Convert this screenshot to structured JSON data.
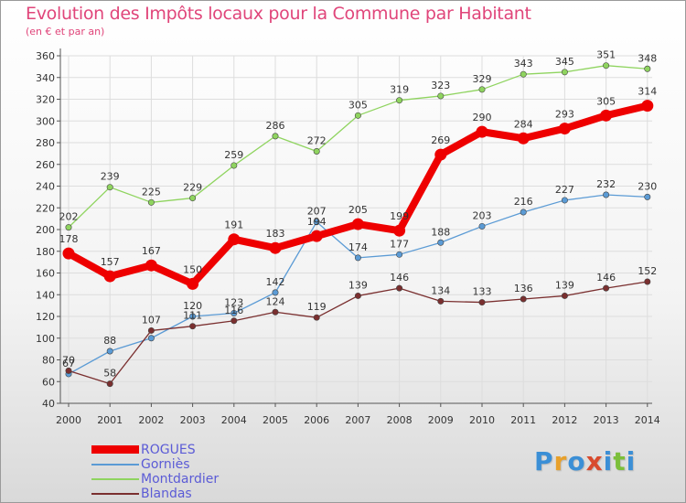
{
  "title": "Evolution des Impôts locaux pour la Commune par Habitant",
  "subtitle": "(en € et par an)",
  "logo": {
    "letters": [
      {
        "ch": "P",
        "color": "#3b8fd6"
      },
      {
        "ch": "r",
        "color": "#e8a02a"
      },
      {
        "ch": "o",
        "color": "#3b8fd6"
      },
      {
        "ch": "x",
        "color": "#d84a2e"
      },
      {
        "ch": "i",
        "color": "#3b8fd6"
      },
      {
        "ch": "t",
        "color": "#7cbf3a"
      },
      {
        "ch": "i",
        "color": "#3b8fd6"
      }
    ]
  },
  "chart_data": {
    "type": "line",
    "x": [
      "2000",
      "2001",
      "2002",
      "2003",
      "2004",
      "2005",
      "2006",
      "2007",
      "2008",
      "2009",
      "2010",
      "2011",
      "2012",
      "2013",
      "2014"
    ],
    "ylim": [
      40,
      360
    ],
    "yticks": [
      40,
      60,
      80,
      100,
      120,
      140,
      160,
      180,
      200,
      220,
      240,
      260,
      280,
      300,
      320,
      340,
      360
    ],
    "grid": true,
    "legend_position": "bottom-left",
    "series": [
      {
        "name": "ROGUES",
        "color": "#ee0000",
        "emphasis": true,
        "values": [
          178,
          157,
          167,
          150,
          191,
          183,
          194,
          205,
          199,
          269,
          290,
          284,
          293,
          305,
          314
        ],
        "labels": [
          "178",
          "157",
          "167",
          "150",
          "191",
          "183",
          "194",
          "205",
          "199",
          "269",
          "290",
          "284",
          "293",
          "305",
          "314"
        ]
      },
      {
        "name": "Gorniès",
        "color": "#5b9bd5",
        "values": [
          67,
          88,
          100,
          120,
          123,
          142,
          207,
          174,
          177,
          188,
          203,
          216,
          227,
          232,
          230
        ],
        "labels": [
          "67",
          "88",
          "",
          "120",
          "123",
          "142",
          "207",
          "174",
          "177",
          "188",
          "203",
          "216",
          "227",
          "232",
          "230"
        ]
      },
      {
        "name": "Montdardier",
        "color": "#8fd45f",
        "values": [
          202,
          239,
          225,
          229,
          259,
          286,
          272,
          305,
          319,
          323,
          329,
          343,
          345,
          351,
          348
        ],
        "labels": [
          "202",
          "239",
          "225",
          "229",
          "259",
          "286",
          "272",
          "305",
          "319",
          "323",
          "329",
          "343",
          "345",
          "351",
          "348"
        ]
      },
      {
        "name": "Blandas",
        "color": "#7a2f2f",
        "values": [
          70,
          58,
          107,
          111,
          116,
          124,
          119,
          139,
          146,
          134,
          133,
          136,
          139,
          146,
          152
        ],
        "labels": [
          "70",
          "58",
          "107",
          "111",
          "116",
          "124",
          "119",
          "139",
          "146",
          "134",
          "133",
          "136",
          "139",
          "146",
          "152"
        ]
      }
    ]
  }
}
